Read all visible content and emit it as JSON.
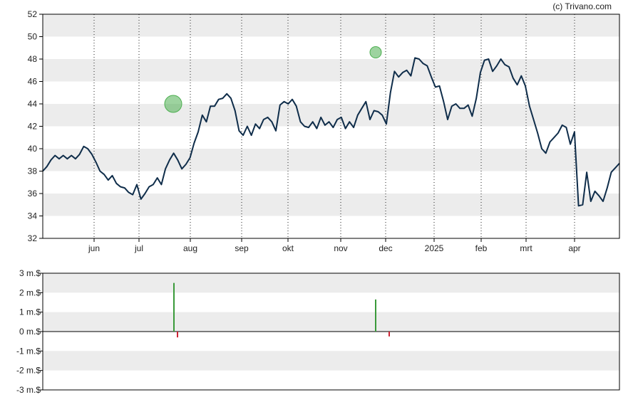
{
  "credit": "(c) Trivano.com",
  "colors": {
    "line": "#0f2d4a",
    "band": "#ececec",
    "axis": "#000000",
    "grid": "#222222",
    "buy": "#3a9a3a",
    "sell": "#cc2233",
    "marker": "#4caf50"
  },
  "chart_data": [
    {
      "type": "line",
      "ylim": [
        32,
        52
      ],
      "y_ticks": [
        "32",
        "34",
        "36",
        "38",
        "40",
        "42",
        "44",
        "46",
        "48",
        "50",
        "52"
      ],
      "x_ticks": [
        "jun",
        "jul",
        "aug",
        "sep",
        "okt",
        "nov",
        "dec",
        "2025",
        "feb",
        "mrt",
        "apr"
      ],
      "grid": "vertical dotted at month ticks; alternating horizontal bands",
      "series": [
        {
          "values": [
            38.0,
            38.4,
            39.0,
            39.4,
            39.1,
            39.4,
            39.1,
            39.4,
            39.1,
            39.5,
            40.2,
            40.0,
            39.5,
            38.8,
            38.0,
            37.7,
            37.2,
            37.6,
            36.9,
            36.6,
            36.5,
            36.1,
            35.9,
            36.8,
            35.5,
            36.0,
            36.6,
            36.8,
            37.4,
            36.8,
            38.2,
            39.0,
            39.6,
            39.0,
            38.2,
            38.6,
            39.2,
            40.5,
            41.5,
            43.0,
            42.4,
            43.8,
            43.8,
            44.4,
            44.5,
            44.9,
            44.5,
            43.4,
            41.6,
            41.2,
            42.0,
            41.2,
            42.2,
            41.8,
            42.6,
            42.8,
            42.4,
            41.6,
            43.9,
            44.2,
            44.0,
            44.4,
            43.8,
            42.4,
            42.0,
            41.9,
            42.4,
            41.8,
            42.8,
            42.1,
            42.4,
            41.9,
            42.6,
            42.8,
            41.8,
            42.4,
            41.9,
            43.0,
            43.6,
            44.2,
            42.6,
            43.4,
            43.3,
            43.0,
            42.2,
            45.0,
            46.9,
            46.4,
            46.8,
            47.0,
            46.5,
            48.1,
            48.0,
            47.6,
            47.4,
            46.4,
            45.5,
            45.6,
            44.2,
            42.6,
            43.8,
            44.0,
            43.6,
            43.6,
            43.9,
            42.9,
            44.5,
            46.8,
            47.9,
            48.0,
            46.9,
            47.4,
            48.0,
            47.5,
            47.3,
            46.3,
            45.7,
            46.5,
            45.6,
            43.8,
            42.6,
            41.4,
            40.0,
            39.6,
            40.6,
            41.0,
            41.4,
            42.1,
            41.9,
            40.4,
            41.5,
            34.9,
            35.0,
            37.9,
            35.3,
            36.2,
            35.8,
            35.3,
            36.5,
            37.9,
            38.3,
            38.7
          ]
        }
      ],
      "markers": [
        {
          "x": "jul",
          "value": 44.0,
          "size": "large"
        },
        {
          "x": "nov",
          "value": 48.6,
          "size": "small"
        }
      ]
    },
    {
      "type": "bar",
      "ylim": [
        -3,
        3
      ],
      "y_ticks": [
        "-3 m.$",
        "-2 m.$",
        "-1 m.$",
        "0 m.$",
        "1 m.$",
        "2 m.$",
        "3 m.$"
      ],
      "series": [
        {
          "values": [
            2.5,
            1.65
          ]
        },
        {
          "values": [
            -0.3,
            -0.25
          ]
        }
      ]
    }
  ]
}
